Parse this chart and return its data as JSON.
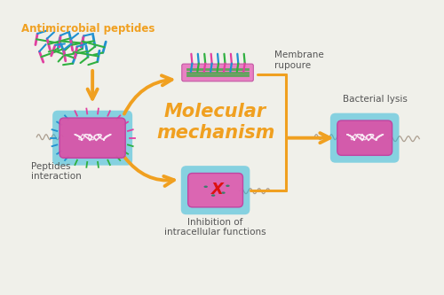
{
  "bg_color": "#f0f0ea",
  "title_text": "Molecular\nmechanism",
  "title_color": "#f0a020",
  "title_fontsize": 15,
  "label_antimicrobial": "Antimicrobial peptides",
  "label_antimicrobial_color": "#f0a020",
  "label_membrane": "Membrane\nrupoure",
  "label_bacterial": "Bacterial lysis",
  "label_peptides": "Peptides\ninteraction",
  "label_inhibition": "Inhibition of\nintracellular functions",
  "label_color_dark": "#555555",
  "arrow_color": "#f0a020",
  "cell_body_color": "#e060a0",
  "cell_border_color": "#30b8d8",
  "peptide_colors": [
    "#e040a0",
    "#2090d0",
    "#30b040"
  ],
  "membrane_pink": "#e878c0",
  "membrane_green": "#50a850"
}
